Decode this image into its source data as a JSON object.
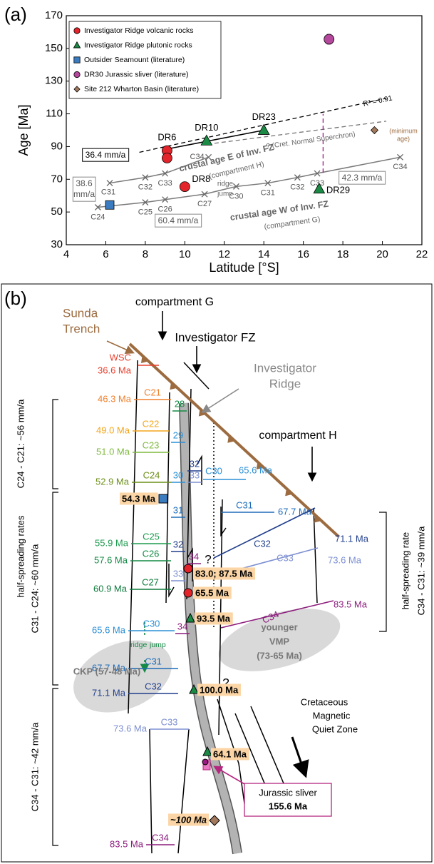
{
  "chart_data": {
    "type": "scatter",
    "panel_label": "(a)",
    "x_label": "Latitude [°S]",
    "y_label": "Age [Ma]",
    "xlim": [
      4,
      22
    ],
    "xticks": [
      4,
      6,
      8,
      10,
      12,
      14,
      16,
      18,
      20,
      22
    ],
    "ylim": [
      30,
      170
    ],
    "yticks": [
      30,
      50,
      70,
      90,
      110,
      130,
      150,
      170
    ],
    "legend": "upper left",
    "series": [
      {
        "name": "Investigator Ridge volcanic rocks",
        "color": "#e3242b",
        "marker": "circle",
        "x": [
          9.1,
          9.1,
          10.0
        ],
        "values": [
          87.5,
          83.0,
          65.5
        ],
        "point_labels": [
          "DR6",
          null,
          "DR8"
        ]
      },
      {
        "name": "Investigator Ridge plutonic rocks",
        "color": "#1a8a44",
        "marker": "triangle",
        "x": [
          11.1,
          14.0,
          16.8
        ],
        "values": [
          93.5,
          100.0,
          64.1
        ],
        "point_labels": [
          "DR10",
          "DR23",
          "DR29"
        ]
      },
      {
        "name": "Outsider Seamount (literature)",
        "color": "#3b7bbf",
        "marker": "square",
        "x": [
          6.2
        ],
        "values": [
          54.3
        ]
      },
      {
        "name": "DR30 Jurassic sliver (literature)",
        "color": "#b5489c",
        "marker": "circle",
        "x": [
          17.3
        ],
        "values": [
          155.6
        ],
        "errors": [
          3
        ]
      },
      {
        "name": "Site 212 Wharton Basin (literature)",
        "color": "#a2795c",
        "marker": "diamond",
        "x": [
          19.6
        ],
        "values": [
          100
        ]
      }
    ],
    "lines": [
      {
        "color": "#000000",
        "style": "dashed",
        "x": [
          7.7,
          20.2
        ],
        "values": [
          86.5,
          119.5
        ]
      },
      {
        "color": "#000000",
        "style": "solid",
        "x": [
          9.1,
          14.0
        ],
        "values": [
          88.5,
          100.0
        ]
      },
      {
        "color": "#777777",
        "style": "dashed",
        "x": [
          11.5,
          20.2
        ],
        "values": [
          92,
          105.5
        ]
      },
      {
        "color": "#7a7a7a",
        "style": "solid",
        "x": [
          6.2,
          8.0,
          9.0,
          11.2
        ],
        "values": [
          67.7,
          71.1,
          73.6,
          83.5
        ],
        "point_labels": [
          "C31",
          "C32",
          "C33",
          "C34"
        ]
      },
      {
        "color": "#7a7a7a",
        "style": "solid",
        "x": [
          5.6,
          8.0,
          9.0,
          11.0,
          12.6,
          14.2,
          15.7,
          16.7,
          20.9
        ],
        "values": [
          52.9,
          55.9,
          57.6,
          60.9,
          65.6,
          67.7,
          71.1,
          73.6,
          83.5
        ],
        "point_labels": [
          "C24",
          "C25",
          "C26",
          "C27",
          "C30",
          "C31",
          "C32",
          "C33",
          "C34"
        ]
      },
      {
        "color": "#9b1b83",
        "style": "dashed",
        "x": [
          17.0,
          17.0
        ],
        "values": [
          74,
          110
        ]
      }
    ],
    "annotations": [
      "36.4 mm/a",
      "38.6",
      "mm/a",
      "60.4 mm/a",
      "42.3 mm/a",
      "R² = 0.91",
      "? (Cret. Normal Superchron)",
      "crustal age E of Inv. FZ",
      "(compartment H)",
      "crustal age W of Inv. FZ",
      "(compartment G)",
      "ridge",
      "jump",
      "(minimum",
      "age)"
    ]
  },
  "diagram": {
    "panel_label": "(b)",
    "trench": [
      "Sunda",
      "Trench"
    ],
    "compartment_g": "compartment G",
    "investigator_fz": "Investigator FZ",
    "investigator_ridge": [
      "Investigator",
      "Ridge"
    ],
    "compartment_h": "compartment H",
    "west_isochrons": [
      {
        "chron": "WSC",
        "age": "36.6 Ma",
        "color": "#e8402f"
      },
      {
        "chron": "C21",
        "age": "46.3 Ma",
        "color": "#f07f2a"
      },
      {
        "chron": "C22",
        "age": "49.0 Ma",
        "color": "#f3a61c"
      },
      {
        "chron": "C23",
        "age": "51.0 Ma",
        "color": "#7fba3f"
      },
      {
        "chron": "C24",
        "age": "52.9 Ma",
        "color": "#6d8f19"
      },
      {
        "chron": "C25",
        "age": "55.9 Ma",
        "color": "#1e9b4f"
      },
      {
        "chron": "C26",
        "age": "57.6 Ma",
        "color": "#148a45"
      },
      {
        "chron": "C27",
        "age": "60.9 Ma",
        "color": "#0d7a3c"
      },
      {
        "chron": "C30",
        "age": "65.6 Ma",
        "color": "#2b8fd6"
      },
      {
        "chron": "C31",
        "age": "67.7 Ma",
        "color": "#1e6cb8"
      },
      {
        "chron": "C32",
        "age": "71.1 Ma",
        "color": "#213f8c"
      },
      {
        "chron": "C33",
        "age": "73.6 Ma",
        "color": "#7d8fd2"
      },
      {
        "chron": "C34",
        "age": "83.5 Ma",
        "color": "#8c1c7d"
      }
    ],
    "middle_chrons": [
      "28",
      "29",
      "32",
      "30",
      "33",
      "31",
      "32",
      "34",
      "33",
      "34"
    ],
    "east_isochrons": [
      {
        "chron": "C30",
        "age": "65.6 Ma",
        "color": "#2b8fd6"
      },
      {
        "chron": "C31",
        "age": "67.7 Ma",
        "color": "#1e6cb8"
      },
      {
        "chron": "C32",
        "age": "71.1 Ma",
        "color": "#213f8c"
      },
      {
        "chron": "C33",
        "age": "73.6 Ma",
        "color": "#7d8fd2"
      },
      {
        "chron": "C34",
        "age": "83.5 Ma",
        "color": "#8c1c7d"
      }
    ],
    "question_marks": [
      "?",
      "?"
    ],
    "samples": [
      "54.3 Ma",
      "83.0; 87.5 Ma",
      "65.5 Ma",
      "93.5 Ma",
      "100.0 Ma",
      "64.1 Ma",
      "~100 Ma"
    ],
    "ridge_jump": [
      "ridge",
      "jump"
    ],
    "ckp": "CKP (57-48 Ma)",
    "vmp": [
      "younger",
      "VMP",
      "(73-65 Ma)"
    ],
    "quiet_zone": [
      "Cretaceous",
      "Magnetic",
      "Quiet Zone"
    ],
    "jurassic_sliver": {
      "name": "Jurassic sliver",
      "age": "155.6 Ma"
    },
    "rates_left": {
      "title": "half-spreading rates",
      "c24_c21": "C24 - C21: ~56 mm/a",
      "c31_c24": "C31 - C24: ~60 mm/a",
      "c34_c31": "C34 - C31: ~42 mm/a"
    },
    "rates_right": {
      "title": "half-spreading rate",
      "c34_c31": "C34 - C31: ~39 mm/a"
    }
  }
}
